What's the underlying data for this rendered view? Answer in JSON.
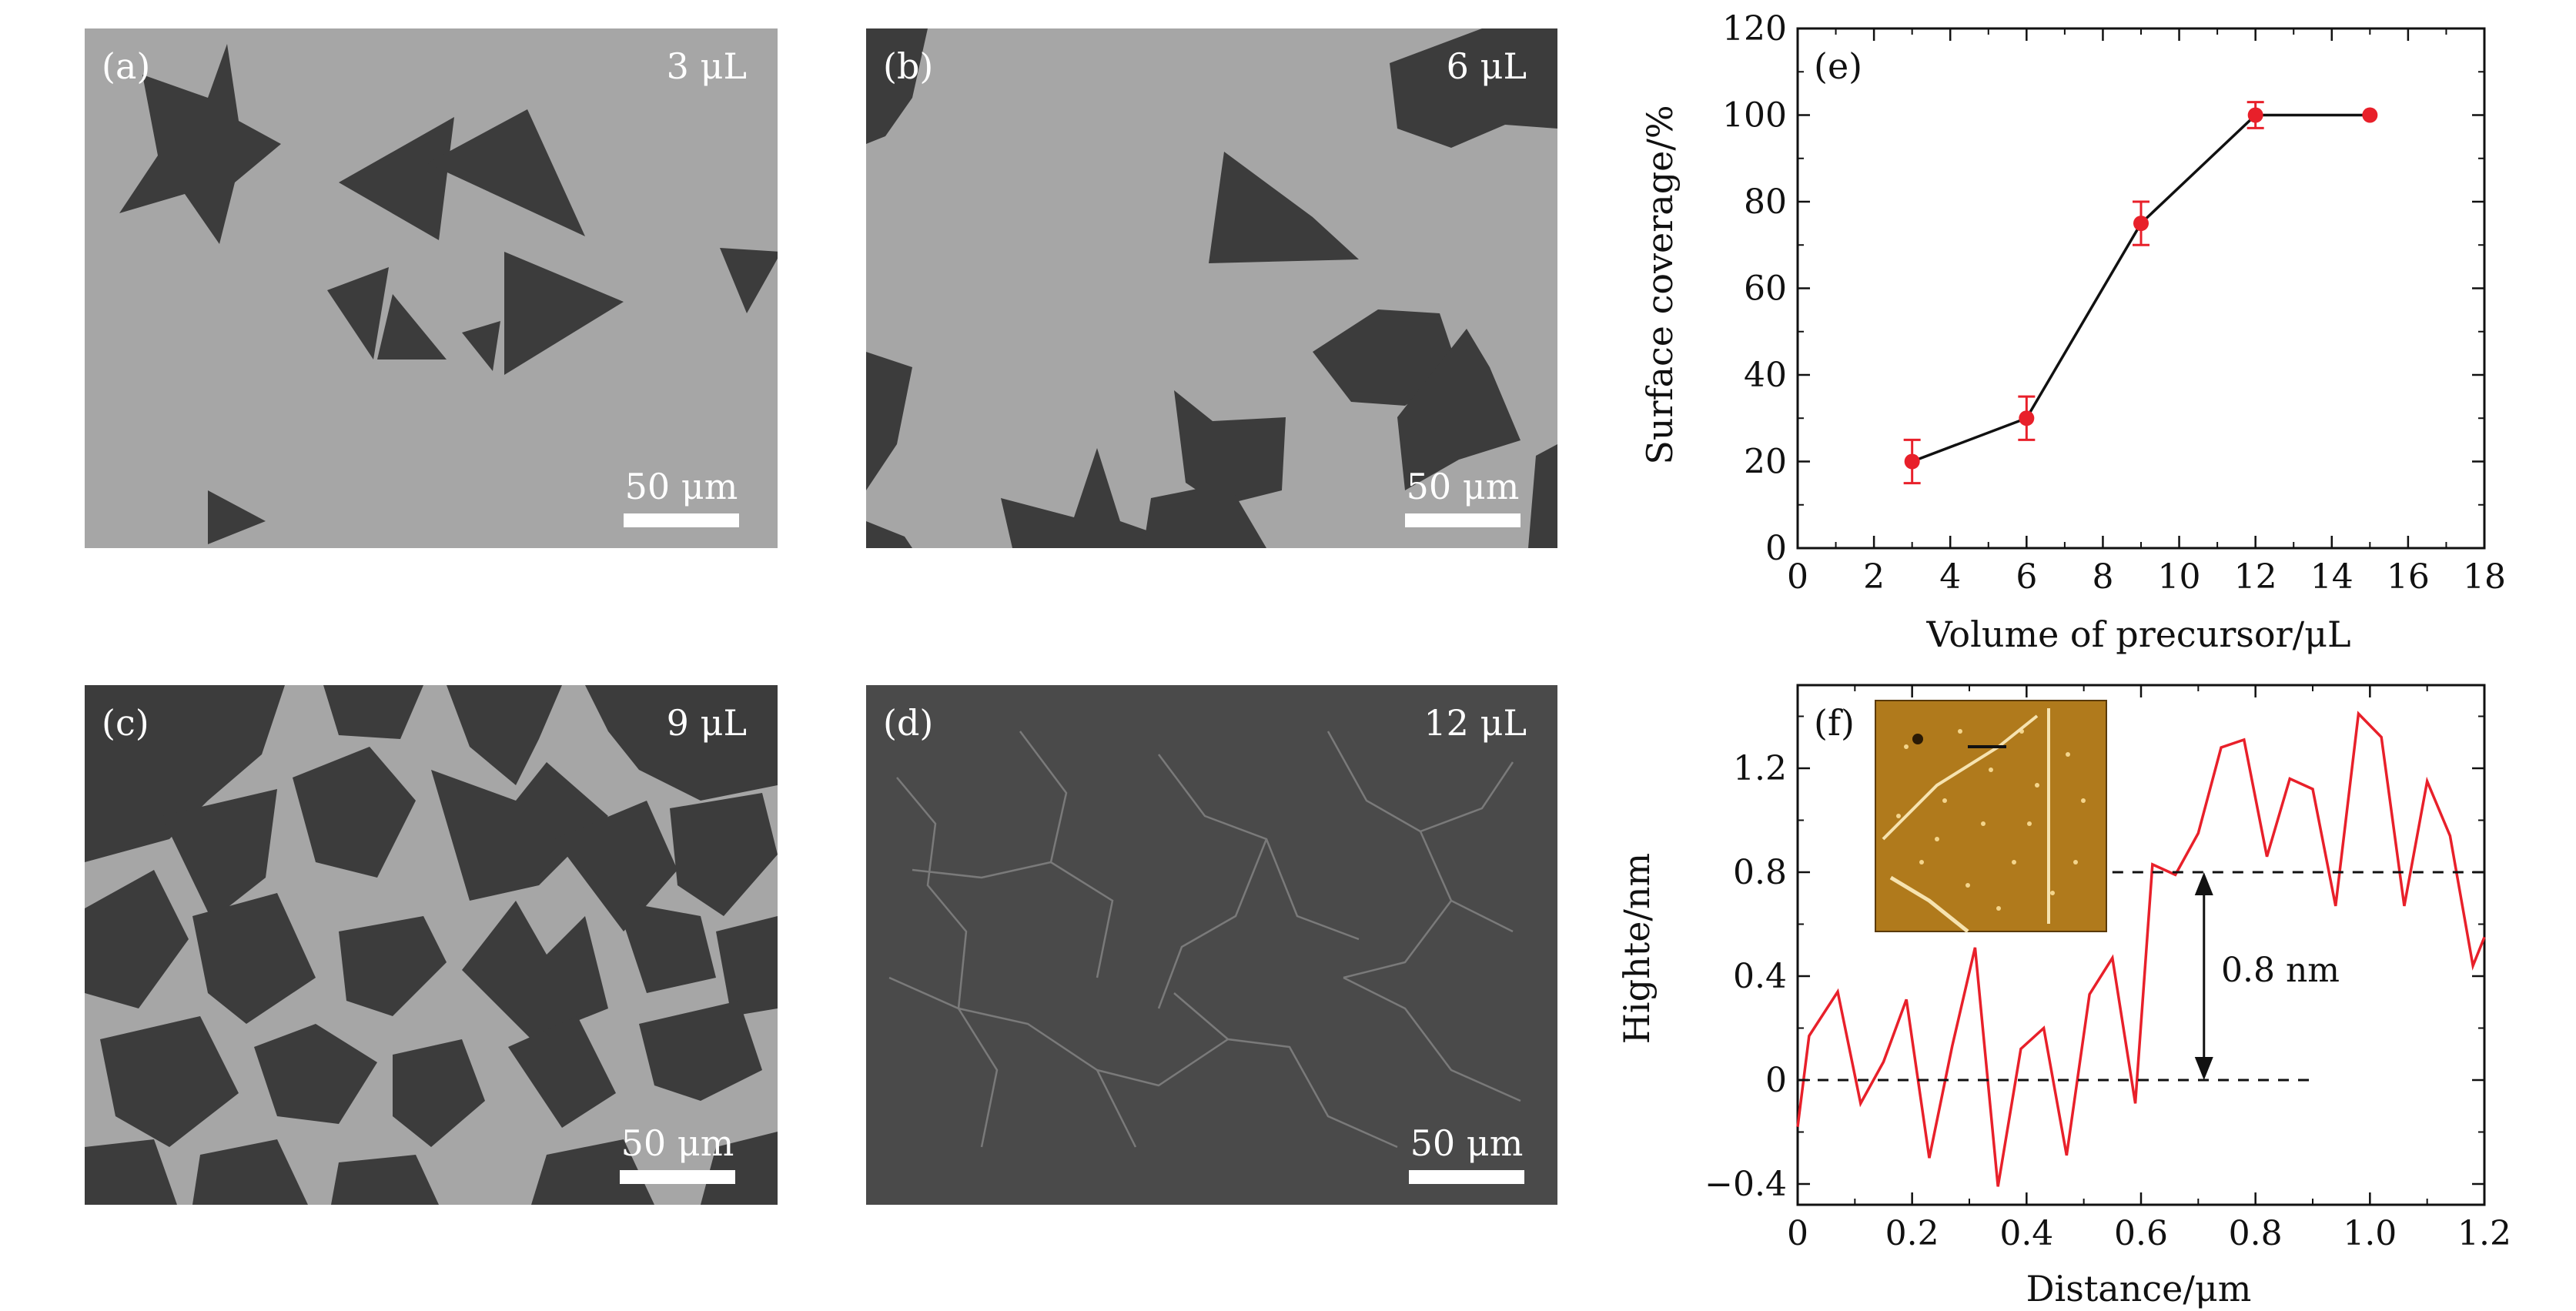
{
  "micrographs": [
    {
      "label": "(a)",
      "volume": "3 μL",
      "scale": "50 μm"
    },
    {
      "label": "(b)",
      "volume": "6 μL",
      "scale": "50 μm"
    },
    {
      "label": "(c)",
      "volume": "9 μL",
      "scale": "50 μm"
    },
    {
      "label": "(d)",
      "volume": "12 μL",
      "scale": "50 μm"
    }
  ],
  "colors": {
    "substrate": "#a6a6a6",
    "flake": "#3c3c3c",
    "film": "#4a4a4a",
    "series": "#e8202a",
    "afm_inset": "#b07a1c"
  },
  "chart_data": [
    {
      "type": "line",
      "panel_label": "(e)",
      "xlabel": "Volume of precursor/μL",
      "ylabel": "Surface coverage/%",
      "xlim": [
        0,
        18
      ],
      "ylim": [
        0,
        120
      ],
      "xticks": [
        0,
        2,
        4,
        6,
        8,
        10,
        12,
        14,
        16,
        18
      ],
      "yticks": [
        0,
        20,
        40,
        60,
        80,
        100,
        120
      ],
      "series": [
        {
          "x": [
            3,
            6,
            9,
            12,
            15
          ],
          "y": [
            20,
            30,
            75,
            100,
            100
          ],
          "yerr": [
            5,
            5,
            5,
            3,
            0
          ]
        }
      ],
      "marker": "circle",
      "grid": false
    },
    {
      "type": "line",
      "panel_label": "(f)",
      "xlabel": "Distance/μm",
      "ylabel": "Highte/nm",
      "xlim": [
        0,
        1.2
      ],
      "ylim": [
        -0.48,
        1.52
      ],
      "xticks": [
        0,
        0.2,
        0.4,
        0.6,
        0.8,
        1.0,
        1.2
      ],
      "xtick_labels": [
        "0",
        "0.2",
        "0.4",
        "0.6",
        "0.8",
        "1.0",
        "1.2"
      ],
      "yticks": [
        -0.4,
        0,
        0.4,
        0.8,
        1.2
      ],
      "ytick_labels": [
        "−0.4",
        "0",
        "0.4",
        "0.8",
        "1.2"
      ],
      "series": [
        {
          "x": [
            0,
            0.02,
            0.07,
            0.11,
            0.15,
            0.19,
            0.23,
            0.27,
            0.31,
            0.35,
            0.39,
            0.43,
            0.47,
            0.51,
            0.55,
            0.59,
            0.62,
            0.66,
            0.7,
            0.74,
            0.78,
            0.82,
            0.86,
            0.9,
            0.94,
            0.98,
            1.02,
            1.06,
            1.1,
            1.14,
            1.18,
            1.2
          ],
          "y": [
            -0.18,
            0.17,
            0.34,
            -0.09,
            0.07,
            0.31,
            -0.3,
            0.13,
            0.51,
            -0.41,
            0.12,
            0.2,
            -0.29,
            0.33,
            0.47,
            -0.09,
            0.83,
            0.79,
            0.95,
            1.28,
            1.31,
            0.86,
            1.16,
            1.12,
            0.67,
            1.41,
            1.32,
            0.67,
            1.15,
            0.94,
            0.44,
            0.55
          ]
        }
      ],
      "reference_lines": [
        0,
        0.8
      ],
      "annotation": "0.8 nm",
      "grid": false
    }
  ]
}
